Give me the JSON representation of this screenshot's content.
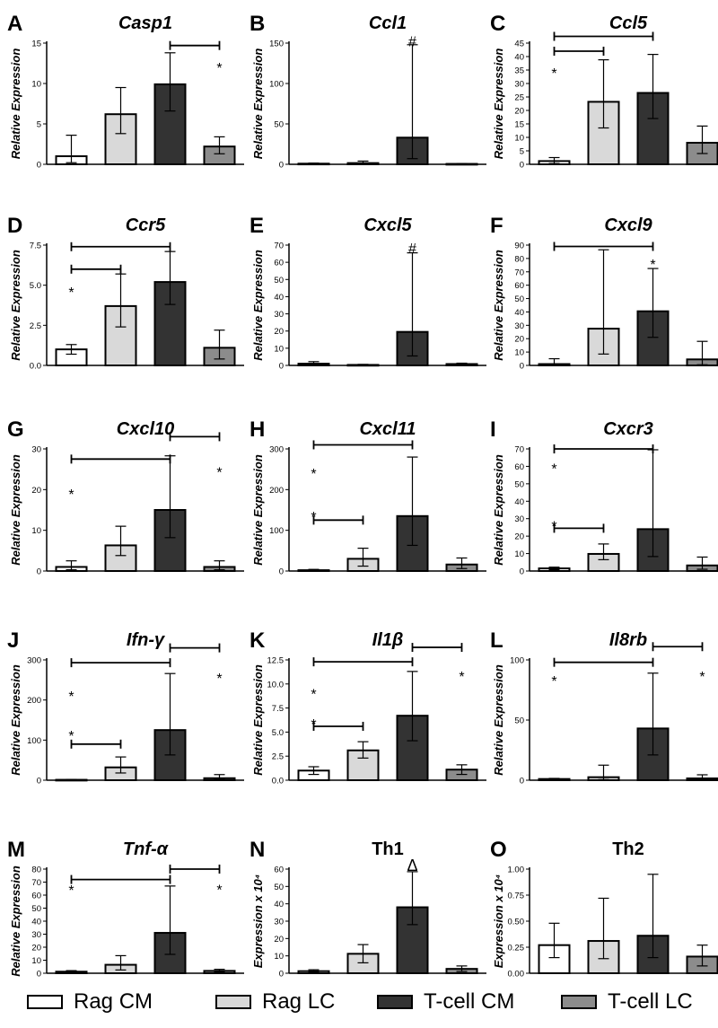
{
  "chart_data": [
    {
      "panel": "A",
      "title": "Casp1",
      "title_italic": true,
      "type": "bar",
      "ylabel": "Relative Expression",
      "ylim": [
        0,
        15
      ],
      "yticks": [
        0,
        5,
        10,
        15
      ],
      "ytick_labels": [
        "0",
        "5",
        "10",
        "15"
      ],
      "categories": [
        "Rag CM",
        "Rag LC",
        "T-cell CM",
        "T-cell LC"
      ],
      "values": [
        1.0,
        6.2,
        9.9,
        2.2
      ],
      "err_lo": [
        0.2,
        3.8,
        6.6,
        1.3
      ],
      "err_hi": [
        3.6,
        9.5,
        13.8,
        3.4
      ],
      "brackets": [
        {
          "from": 2,
          "to": 3,
          "y": 14.7,
          "label": "*",
          "label_at": 3,
          "label_y": 12.2
        }
      ],
      "marks": []
    },
    {
      "panel": "B",
      "title": "Ccl1",
      "title_italic": true,
      "type": "bar",
      "ylabel": "Relative Expression",
      "ylim": [
        0,
        150
      ],
      "yticks": [
        0,
        50,
        100,
        150
      ],
      "ytick_labels": [
        "0",
        "50",
        "100",
        "150"
      ],
      "categories": [
        "Rag CM",
        "Rag LC",
        "T-cell CM",
        "T-cell LC"
      ],
      "values": [
        0.8,
        1.5,
        33,
        0.5
      ],
      "err_lo": [
        0.4,
        0.5,
        7,
        0.3
      ],
      "err_hi": [
        1.5,
        4,
        148,
        1
      ],
      "brackets": [],
      "marks": [
        {
          "label": "#",
          "at": 2,
          "y": 153
        }
      ]
    },
    {
      "panel": "C",
      "title": "Ccl5",
      "title_italic": true,
      "type": "bar",
      "ylabel": "Relative Expression",
      "ylim": [
        0,
        45
      ],
      "yticks": [
        0,
        5,
        10,
        15,
        20,
        25,
        30,
        35,
        40,
        45
      ],
      "ytick_labels": [
        "0",
        "5",
        "10",
        "15",
        "20",
        "25",
        "30",
        "35",
        "40",
        "45"
      ],
      "categories": [
        "Rag CM",
        "Rag LC",
        "T-cell CM",
        "T-cell LC"
      ],
      "values": [
        1.2,
        23.2,
        26.5,
        8.0
      ],
      "err_lo": [
        0.3,
        13.5,
        17.0,
        4.0
      ],
      "err_hi": [
        2.5,
        38.8,
        40.8,
        14.2
      ],
      "brackets": [
        {
          "from": 0,
          "to": 2,
          "y": 47.5,
          "label": null
        },
        {
          "from": 0,
          "to": 1,
          "y": 42,
          "label": null
        }
      ],
      "marks": [
        {
          "label": "*",
          "at": 0,
          "y": 34
        }
      ]
    },
    {
      "panel": "D",
      "title": "Ccr5",
      "title_italic": true,
      "type": "bar",
      "ylabel": "Relative Expression",
      "ylim": [
        0,
        7.5
      ],
      "yticks": [
        0,
        2.5,
        5,
        7.5
      ],
      "ytick_labels": [
        "0.0",
        "2.5",
        "5.0",
        "7.5"
      ],
      "categories": [
        "Rag CM",
        "Rag LC",
        "T-cell CM",
        "T-cell LC"
      ],
      "values": [
        1.0,
        3.7,
        5.2,
        1.1
      ],
      "err_lo": [
        0.7,
        2.4,
        3.8,
        0.4
      ],
      "err_hi": [
        1.3,
        5.7,
        7.1,
        2.2
      ],
      "brackets": [
        {
          "from": 0,
          "to": 2,
          "y": 7.4,
          "label": null
        },
        {
          "from": 0,
          "to": 1,
          "y": 6.0,
          "label": null
        }
      ],
      "marks": [
        {
          "label": "*",
          "at": 0,
          "y": 4.6
        }
      ]
    },
    {
      "panel": "E",
      "title": "Cxcl5",
      "title_italic": true,
      "type": "bar",
      "ylabel": "Relative Expression",
      "ylim": [
        0,
        70
      ],
      "yticks": [
        0,
        10,
        20,
        30,
        40,
        50,
        60,
        70
      ],
      "ytick_labels": [
        "0",
        "10",
        "20",
        "30",
        "40",
        "50",
        "60",
        "70"
      ],
      "categories": [
        "Rag CM",
        "Rag LC",
        "T-cell CM",
        "T-cell LC"
      ],
      "values": [
        1.0,
        0.3,
        19.5,
        0.8
      ],
      "err_lo": [
        0.3,
        0.1,
        5.5,
        0.3
      ],
      "err_hi": [
        2.2,
        0.6,
        65.5,
        1.3
      ],
      "brackets": [],
      "marks": [
        {
          "label": "#",
          "at": 2,
          "y": 68.5
        }
      ]
    },
    {
      "panel": "F",
      "title": "Cxcl9",
      "title_italic": true,
      "type": "bar",
      "ylabel": "Relative Expression",
      "ylim": [
        0,
        90
      ],
      "yticks": [
        0,
        10,
        20,
        30,
        40,
        50,
        60,
        70,
        80,
        90
      ],
      "ytick_labels": [
        "0",
        "10",
        "20",
        "30",
        "40",
        "50",
        "60",
        "70",
        "80",
        "90"
      ],
      "categories": [
        "Rag CM",
        "Rag LC",
        "T-cell CM",
        "T-cell LC"
      ],
      "values": [
        1.0,
        27.5,
        40.5,
        4.5
      ],
      "err_lo": [
        0.3,
        8.5,
        21.0,
        0.5
      ],
      "err_hi": [
        5,
        86.5,
        72.5,
        18
      ],
      "brackets": [
        {
          "from": 0,
          "to": 2,
          "y": 89,
          "label": null
        }
      ],
      "marks": [
        {
          "label": "*",
          "at": 2,
          "y": 76
        }
      ]
    },
    {
      "panel": "G",
      "title": "Cxcl10",
      "title_italic": true,
      "type": "bar",
      "ylabel": "Relative Expression",
      "ylim": [
        0,
        30
      ],
      "yticks": [
        0,
        10,
        20,
        30
      ],
      "ytick_labels": [
        "0",
        "10",
        "20",
        "30"
      ],
      "categories": [
        "Rag CM",
        "Rag LC",
        "T-cell CM",
        "T-cell LC"
      ],
      "values": [
        1.0,
        6.3,
        15.0,
        1.0
      ],
      "err_lo": [
        0.3,
        3.8,
        8.2,
        0.3
      ],
      "err_hi": [
        2.5,
        11.0,
        28.3,
        2.5
      ],
      "brackets": [
        {
          "from": 0,
          "to": 2,
          "y": 27.5,
          "label": null
        },
        {
          "from": 2,
          "to": 3,
          "y": 33.0,
          "label": "*",
          "label_at": 3,
          "label_y": 24.8
        }
      ],
      "marks": [
        {
          "label": "*",
          "at": 0,
          "y": 19.0
        }
      ]
    },
    {
      "panel": "H",
      "title": "Cxcl11",
      "title_italic": true,
      "type": "bar",
      "ylabel": "Relative Expression",
      "ylim": [
        0,
        300
      ],
      "yticks": [
        0,
        100,
        200,
        300
      ],
      "ytick_labels": [
        "0",
        "100",
        "200",
        "300"
      ],
      "categories": [
        "Rag CM",
        "Rag LC",
        "T-cell CM",
        "T-cell LC"
      ],
      "values": [
        2,
        30,
        135,
        16
      ],
      "err_lo": [
        1,
        12,
        63,
        6
      ],
      "err_hi": [
        4,
        56,
        280,
        32
      ],
      "brackets": [
        {
          "from": 0,
          "to": 2,
          "y": 310,
          "label": null
        },
        {
          "from": 0,
          "to": 1,
          "y": 125,
          "label": null
        }
      ],
      "marks": [
        {
          "label": "*",
          "at": 0,
          "y": 240
        },
        {
          "label": "*",
          "at": 0,
          "y": 135
        }
      ]
    },
    {
      "panel": "I",
      "title": "Cxcr3",
      "title_italic": true,
      "type": "bar",
      "ylabel": "Relative Expression",
      "ylim": [
        0,
        70
      ],
      "yticks": [
        0,
        10,
        20,
        30,
        40,
        50,
        60,
        70
      ],
      "ytick_labels": [
        "0",
        "10",
        "20",
        "30",
        "40",
        "50",
        "60",
        "70"
      ],
      "categories": [
        "Rag CM",
        "Rag LC",
        "T-cell CM",
        "T-cell LC"
      ],
      "values": [
        1.5,
        9.8,
        24.0,
        3.2
      ],
      "err_lo": [
        0.8,
        6.5,
        8.3,
        1.0
      ],
      "err_hi": [
        2.2,
        15.5,
        69.5,
        8.0
      ],
      "brackets": [
        {
          "from": 0,
          "to": 2,
          "y": 70,
          "label": null
        },
        {
          "from": 0,
          "to": 1,
          "y": 24.5,
          "label": null
        }
      ],
      "marks": [
        {
          "label": "*",
          "at": 0,
          "y": 59
        },
        {
          "label": "*",
          "at": 0,
          "y": 26
        }
      ]
    },
    {
      "panel": "J",
      "title": "Ifn-γ",
      "title_italic": true,
      "type": "bar",
      "ylabel": "Relative Expression",
      "ylim": [
        0,
        300
      ],
      "yticks": [
        0,
        100,
        200,
        300
      ],
      "ytick_labels": [
        "0",
        "100",
        "200",
        "300"
      ],
      "categories": [
        "Rag CM",
        "Rag LC",
        "T-cell CM",
        "T-cell LC"
      ],
      "values": [
        1,
        32,
        125,
        5
      ],
      "err_lo": [
        0.5,
        18,
        63,
        2
      ],
      "err_hi": [
        2,
        58,
        266,
        14
      ],
      "brackets": [
        {
          "from": 0,
          "to": 2,
          "y": 293,
          "label": null
        },
        {
          "from": 2,
          "to": 3,
          "y": 330,
          "label": "*",
          "label_at": 3,
          "label_y": 260
        },
        {
          "from": 0,
          "to": 1,
          "y": 90,
          "label": null
        }
      ],
      "marks": [
        {
          "label": "*",
          "at": 0,
          "y": 210
        },
        {
          "label": "*",
          "at": 0,
          "y": 112
        }
      ]
    },
    {
      "panel": "K",
      "title": "Il1β",
      "title_italic": true,
      "type": "bar",
      "ylabel": "Relative Expression",
      "ylim": [
        0,
        12.5
      ],
      "yticks": [
        0,
        2.5,
        5,
        7.5,
        10,
        12.5
      ],
      "ytick_labels": [
        "0.0",
        "2.5",
        "5.0",
        "7.5",
        "10.0",
        "12.5"
      ],
      "categories": [
        "Rag CM",
        "Rag LC",
        "T-cell CM",
        "T-cell LC"
      ],
      "values": [
        1.0,
        3.1,
        6.7,
        1.1
      ],
      "err_lo": [
        0.6,
        2.3,
        4.1,
        0.6
      ],
      "err_hi": [
        1.4,
        4.0,
        11.3,
        1.6
      ],
      "brackets": [
        {
          "from": 0,
          "to": 2,
          "y": 12.3,
          "label": null
        },
        {
          "from": 2,
          "to": 3,
          "y": 13.8,
          "label": "*",
          "label_at": 3,
          "label_y": 11.0
        },
        {
          "from": 0,
          "to": 1,
          "y": 5.6,
          "label": null
        }
      ],
      "marks": [
        {
          "label": "*",
          "at": 0,
          "y": 9.0
        },
        {
          "label": "*",
          "at": 0,
          "y": 5.9
        }
      ]
    },
    {
      "panel": "L",
      "title": "Il8rb",
      "title_italic": true,
      "type": "bar",
      "ylabel": "Relative Expression",
      "ylim": [
        0,
        100
      ],
      "yticks": [
        0,
        50,
        100
      ],
      "ytick_labels": [
        "0",
        "50",
        "100"
      ],
      "categories": [
        "Rag CM",
        "Rag LC",
        "T-cell CM",
        "T-cell LC"
      ],
      "values": [
        1,
        2.5,
        43,
        1.5
      ],
      "err_lo": [
        0.5,
        0.5,
        21,
        0.5
      ],
      "err_hi": [
        1.5,
        12.5,
        89,
        4.5
      ],
      "brackets": [
        {
          "from": 0,
          "to": 2,
          "y": 98,
          "label": null
        },
        {
          "from": 2,
          "to": 3,
          "y": 111,
          "label": "*",
          "label_at": 3,
          "label_y": 88
        }
      ],
      "marks": [
        {
          "label": "*",
          "at": 0,
          "y": 83
        }
      ]
    },
    {
      "panel": "M",
      "title": "Tnf-α",
      "title_italic": true,
      "type": "bar",
      "ylabel": "Relative Expression",
      "ylim": [
        0,
        80
      ],
      "yticks": [
        0,
        10,
        20,
        30,
        40,
        50,
        60,
        70,
        80
      ],
      "ytick_labels": [
        "0",
        "10",
        "20",
        "30",
        "40",
        "50",
        "60",
        "70",
        "80"
      ],
      "categories": [
        "Rag CM",
        "Rag LC",
        "T-cell CM",
        "T-cell LC"
      ],
      "values": [
        1.2,
        6.5,
        31.0,
        1.8
      ],
      "err_lo": [
        0.5,
        2.5,
        14.5,
        1.0
      ],
      "err_hi": [
        2.0,
        13.5,
        67.0,
        3.0
      ],
      "brackets": [
        {
          "from": 0,
          "to": 2,
          "y": 72,
          "label": null
        },
        {
          "from": 2,
          "to": 3,
          "y": 80,
          "label": "*",
          "label_at": 3,
          "label_y": 66
        }
      ],
      "marks": [
        {
          "label": "*",
          "at": 0,
          "y": 64
        }
      ]
    },
    {
      "panel": "N",
      "title": "Th1",
      "title_italic": false,
      "type": "bar",
      "ylabel": "Expression x 10⁴",
      "ylim": [
        0,
        60
      ],
      "yticks": [
        0,
        10,
        20,
        30,
        40,
        50,
        60
      ],
      "ytick_labels": [
        "0",
        "10",
        "20",
        "30",
        "40",
        "50",
        "60"
      ],
      "categories": [
        "Rag CM",
        "Rag LC",
        "T-cell CM",
        "T-cell LC"
      ],
      "values": [
        1.2,
        11.2,
        38.0,
        2.5
      ],
      "err_lo": [
        0.5,
        6.0,
        28.0,
        1.0
      ],
      "err_hi": [
        2.0,
        16.5,
        58.5,
        4.2
      ],
      "brackets": [],
      "marks": [
        {
          "label": "Δ",
          "at": 2,
          "y": 62
        }
      ]
    },
    {
      "panel": "O",
      "title": "Th2",
      "title_italic": false,
      "type": "bar",
      "ylabel": "Expression x 10⁴",
      "ylim": [
        0,
        1.0
      ],
      "yticks": [
        0,
        0.25,
        0.5,
        0.75,
        1.0
      ],
      "ytick_labels": [
        "0.00",
        "0.25",
        "0.50",
        "0.75",
        "1.00"
      ],
      "categories": [
        "Rag CM",
        "Rag LC",
        "T-cell CM",
        "T-cell LC"
      ],
      "values": [
        0.27,
        0.31,
        0.36,
        0.16
      ],
      "err_lo": [
        0.15,
        0.14,
        0.15,
        0.07
      ],
      "err_hi": [
        0.48,
        0.72,
        0.95,
        0.27
      ],
      "brackets": [],
      "marks": []
    }
  ],
  "legend": [
    {
      "label": "Rag CM",
      "color": "#ffffff"
    },
    {
      "label": "Rag LC",
      "color": "#d9d9d9"
    },
    {
      "label": "T-cell CM",
      "color": "#333333"
    },
    {
      "label": "T-cell LC",
      "color": "#8c8c8c"
    }
  ],
  "bar_colors": [
    "#ffffff",
    "#d9d9d9",
    "#333333",
    "#8c8c8c"
  ]
}
